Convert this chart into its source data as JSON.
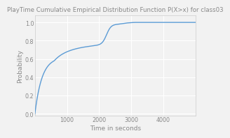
{
  "title": "PlayTime Cumulative Empirical Distribution Function P(X>x) for class03",
  "xlabel": "Time in seconds",
  "ylabel": "Probability",
  "line_color": "#5b9bd5",
  "background_color": "#f2f2f2",
  "plot_bg_color": "#f2f2f2",
  "grid_color": "#ffffff",
  "spine_color": "#cccccc",
  "xlim": [
    0,
    5000
  ],
  "ylim": [
    -0.02,
    1.08
  ],
  "xticks": [
    1000,
    2000,
    3000,
    4000
  ],
  "yticks": [
    0,
    0.2,
    0.4,
    0.6,
    0.8,
    1.0
  ],
  "title_fontsize": 6.2,
  "axis_fontsize": 6.5,
  "tick_fontsize": 5.8,
  "title_color": "#888888",
  "label_color": "#888888",
  "tick_color": "#888888"
}
